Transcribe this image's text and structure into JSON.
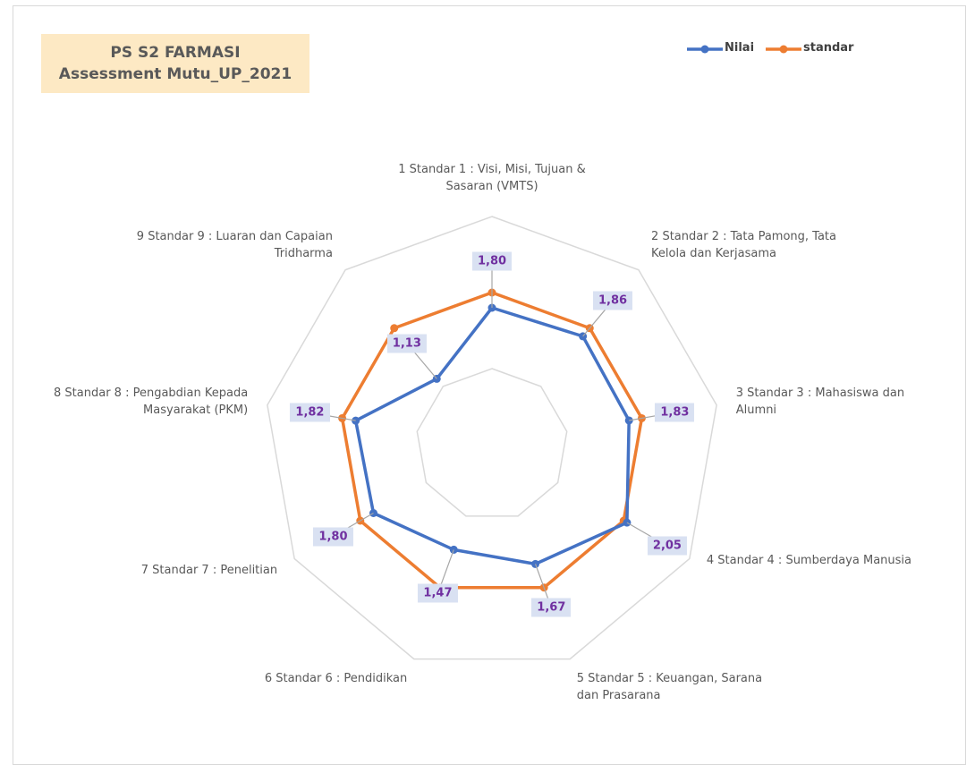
{
  "chart_data": {
    "type": "radar",
    "title": "PS S2 FARMASI",
    "subtitle": "Assessment Mutu_UP_2021",
    "categories": [
      "1 Standar 1 : Visi, Misi, Tujuan & Sasaran (VMTS)",
      "2 Standar 2 : Tata Pamong, Tata Kelola dan Kerjasama",
      "3 Standar 3 : Mahasiswa dan Alumni",
      "4 Standar 4 : Sumberdaya Manusia",
      "5 Standar 5 : Keuangan, Sarana dan Prasarana",
      "6 Standar 6 : Pendidikan",
      "7 Standar 7 : Penelitian",
      "8 Standar 8 : Pengabdian Kepada Masyarakat (PKM)",
      "9 Standar 9 : Luaran dan Capaian Tridharma"
    ],
    "series": [
      {
        "name": "Nilai",
        "color": "#4472c4",
        "values": [
          1.8,
          1.86,
          1.83,
          2.05,
          1.67,
          1.47,
          1.8,
          1.82,
          1.13
        ],
        "value_labels": [
          "1,80",
          "1,86",
          "1,83",
          "2,05",
          "1,67",
          "1,47",
          "1,80",
          "1,82",
          "1,13"
        ]
      },
      {
        "name": "standar",
        "color": "#ed7d31",
        "values": [
          2,
          2,
          2,
          2,
          2,
          2,
          2,
          2,
          2
        ]
      }
    ],
    "ylim": [
      0,
      3
    ],
    "yticks": [
      0,
      1,
      2,
      3
    ],
    "grid": true,
    "legend": "top-right"
  }
}
